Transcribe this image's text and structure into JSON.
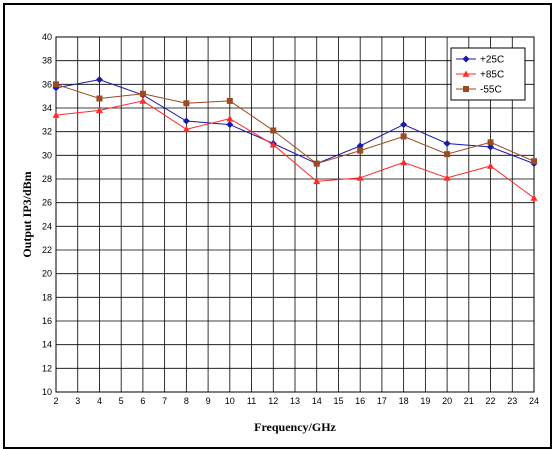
{
  "chart_data": {
    "type": "line",
    "title": "",
    "xlabel": "Frequency/GHz",
    "ylabel": "Output IP3/dBm",
    "x": [
      2,
      4,
      6,
      8,
      10,
      12,
      14,
      16,
      18,
      20,
      22,
      24
    ],
    "xticks": [
      2,
      3,
      4,
      5,
      6,
      7,
      8,
      9,
      10,
      11,
      12,
      13,
      14,
      15,
      16,
      17,
      18,
      19,
      20,
      21,
      22,
      23,
      24
    ],
    "xlim": [
      2,
      24
    ],
    "ylim": [
      10,
      40
    ],
    "yticks": [
      10,
      12,
      14,
      16,
      18,
      20,
      22,
      24,
      26,
      28,
      30,
      32,
      34,
      36,
      38,
      40
    ],
    "grid": true,
    "legend_position": "top-right",
    "series": [
      {
        "name": "+25C",
        "color": "#1a1aa8",
        "marker": "diamond",
        "values": [
          35.7,
          36.4,
          35.1,
          32.9,
          32.6,
          31.0,
          29.3,
          30.8,
          32.6,
          31.0,
          30.7,
          29.3
        ]
      },
      {
        "name": "+85C",
        "color": "#ff2a2a",
        "marker": "triangle",
        "values": [
          33.4,
          33.8,
          34.6,
          32.2,
          33.1,
          30.9,
          27.8,
          28.1,
          29.4,
          28.1,
          29.1,
          26.4
        ]
      },
      {
        "name": "-55C",
        "color": "#9c4a22",
        "marker": "square",
        "values": [
          36.0,
          34.8,
          35.2,
          34.4,
          34.6,
          32.1,
          29.3,
          30.4,
          31.6,
          30.1,
          31.1,
          29.5
        ]
      }
    ]
  }
}
